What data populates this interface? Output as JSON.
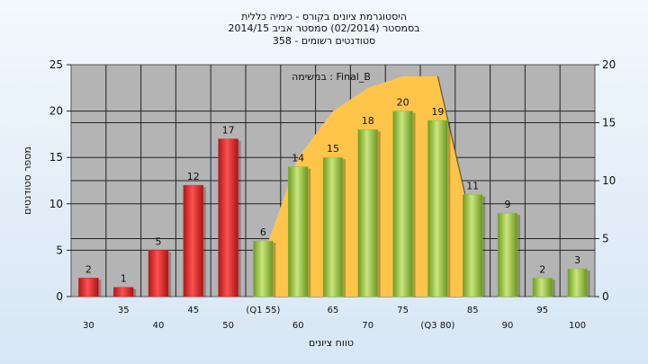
{
  "titles": [
    "היסטוגרמת ציונים בקורס - כימיה כללית",
    "בסמסטר  (02/2014)  סמסטר אביב 2014/15",
    "סטודנטים רשומים - 358"
  ],
  "chart_data": {
    "type": "bar",
    "ylabel": "מספר סטודנטים",
    "xlabel": "טווח ציונים",
    "ylim": [
      0,
      25
    ],
    "y_ticks": [
      0,
      5,
      10,
      15,
      20,
      25
    ],
    "y2lim": [
      0,
      20
    ],
    "y2_ticks": [
      0,
      5,
      10,
      15,
      20
    ],
    "grid": true,
    "legend": "במשימה : Final_B",
    "categories": [
      "30",
      "35",
      "40",
      "45",
      "50",
      "(Q1 55)",
      "60",
      "65",
      "70",
      "75",
      "(Q3 80)",
      "85",
      "90",
      "95",
      "100"
    ],
    "values": [
      2,
      1,
      5,
      12,
      17,
      6,
      14,
      15,
      18,
      20,
      19,
      11,
      9,
      2,
      3
    ],
    "bar_colors": [
      "#d42a2a",
      "#d42a2a",
      "#d42a2a",
      "#d42a2a",
      "#d42a2a",
      "#8fbf3a",
      "#8fbf3a",
      "#8fbf3a",
      "#8fbf3a",
      "#8fbf3a",
      "#8fbf3a",
      "#8fbf3a",
      "#8fbf3a",
      "#8fbf3a",
      "#8fbf3a"
    ],
    "area_series": {
      "color": "#ffc54a",
      "x": [
        "(Q1 55)",
        "60",
        "65",
        "70",
        "75",
        "(Q3 80)",
        "85"
      ],
      "values": [
        3.5,
        12,
        16,
        18,
        19,
        19,
        6
      ]
    }
  }
}
